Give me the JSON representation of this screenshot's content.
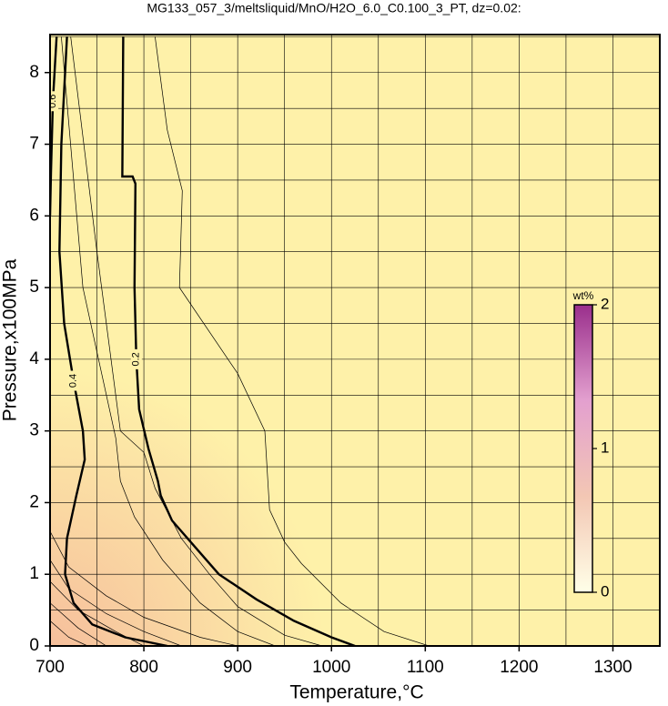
{
  "chart_data": {
    "type": "contour",
    "title": "MG133_057_3/meltsliquid/MnO/H2O_6.0_C0.100_3_PT, dz=0.02:",
    "x_label": "Temperature,°C",
    "y_label": "Pressure,x100MPa",
    "xlim": [
      700,
      1350
    ],
    "ylim": [
      0,
      8.53
    ],
    "xticks": [
      700,
      800,
      900,
      1000,
      1100,
      1200,
      1300
    ],
    "yticks": [
      0,
      1,
      2,
      3,
      4,
      5,
      6,
      7,
      8
    ],
    "xminorticks": [
      750,
      850,
      950,
      1050,
      1150,
      1250
    ],
    "yminorticks": [
      0.5,
      1.5,
      2.5,
      3.5,
      4.5,
      5.5,
      6.5,
      7.5,
      8.5
    ],
    "grid": true,
    "fill_colors": [
      "#fef1a9",
      "#f6bf9c"
    ],
    "contours": [
      {
        "label": "0.2",
        "bold": true,
        "x": [
          778,
          777,
          788,
          791,
          790,
          792,
          795,
          805,
          815,
          818,
          830,
          850,
          880,
          920,
          960,
          1000,
          1025
        ],
        "y": [
          8.5,
          6.55,
          6.55,
          6.45,
          5.0,
          4.0,
          3.3,
          2.75,
          2.3,
          2.1,
          1.75,
          1.45,
          1.0,
          0.65,
          0.35,
          0.12,
          0
        ]
      },
      {
        "label": "0.4",
        "bold": true,
        "x": [
          718,
          712,
          710,
          715,
          725,
          735,
          737,
          728,
          718,
          716,
          725,
          745,
          780,
          825
        ],
        "y": [
          8.5,
          7.0,
          5.5,
          4.5,
          3.7,
          3.0,
          2.6,
          2.1,
          1.5,
          1.0,
          0.6,
          0.3,
          0.12,
          0
        ]
      },
      {
        "label": "0.6",
        "bold": true,
        "x": [
          707,
          703,
          701,
          700
        ],
        "y": [
          8.5,
          7.6,
          6.6,
          6.0
        ]
      },
      {
        "x": [
          812,
          825,
          841,
          838,
          900,
          929,
          934,
          950,
          968,
          1010,
          1056,
          1104
        ],
        "y": [
          8.5,
          7.2,
          6.35,
          5.0,
          3.8,
          3.0,
          1.9,
          1.45,
          1.15,
          0.6,
          0.2,
          0
        ]
      },
      {
        "x": [
          722,
          750,
          765,
          775,
          800,
          812,
          840,
          870,
          900,
          950,
          990
        ],
        "y": [
          8.5,
          5.5,
          4.0,
          3.0,
          2.7,
          2.2,
          1.5,
          1.0,
          0.55,
          0.15,
          0
        ]
      },
      {
        "x": [
          712,
          735,
          755,
          770,
          775,
          790,
          820,
          860,
          900,
          940
        ],
        "y": [
          8.5,
          5.0,
          3.8,
          2.9,
          2.3,
          1.8,
          1.2,
          0.6,
          0.2,
          0
        ]
      },
      {
        "x": [
          700,
          720,
          760,
          800,
          860,
          900
        ],
        "y": [
          1.6,
          1.1,
          0.7,
          0.4,
          0.12,
          0
        ]
      },
      {
        "x": [
          700,
          720,
          760,
          800,
          840
        ],
        "y": [
          1.2,
          0.8,
          0.45,
          0.2,
          0
        ]
      },
      {
        "x": [
          700,
          730,
          770,
          800
        ],
        "y": [
          0.9,
          0.5,
          0.2,
          0
        ]
      },
      {
        "x": [
          700,
          730,
          760
        ],
        "y": [
          0.6,
          0.25,
          0
        ]
      },
      {
        "x": [
          700,
          720,
          740
        ],
        "y": [
          0.35,
          0.12,
          0
        ]
      }
    ],
    "colorbar": {
      "label": "wt%",
      "lim": [
        0,
        2
      ],
      "ticks": [
        0,
        1,
        2
      ],
      "colors": [
        "#ffffe8",
        "#f3c7b4",
        "#e3a0cf",
        "#9a2f8c"
      ]
    }
  }
}
